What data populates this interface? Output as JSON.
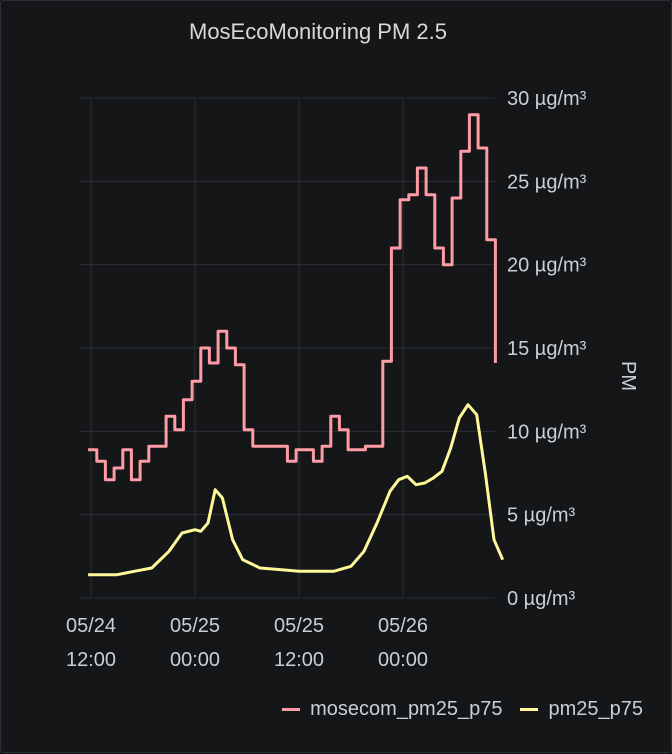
{
  "chart_data": {
    "type": "line",
    "title": "MosEcoMonitoring PM 2.5",
    "ylabel": "PM",
    "y_unit": "µg/m³",
    "ylim": [
      0,
      30
    ],
    "y_ticks": [
      0,
      5,
      10,
      15,
      20,
      25,
      30
    ],
    "y_tick_labels": [
      "0 µg/m³",
      "5 µg/m³",
      "10 µg/m³",
      "15 µg/m³",
      "20 µg/m³",
      "25 µg/m³",
      "30 µg/m³"
    ],
    "x_ticks": [
      {
        "t": "05/24 12:00",
        "line1": "05/24",
        "line2": "12:00"
      },
      {
        "t": "05/25 00:00",
        "line1": "05/25",
        "line2": "00:00"
      },
      {
        "t": "05/25 12:00",
        "line1": "05/25",
        "line2": "12:00"
      },
      {
        "t": "05/26 00:00",
        "line1": "05/26",
        "line2": "00:00"
      }
    ],
    "grid": true,
    "legend_position": "bottom-right",
    "series": [
      {
        "name": "mosecom_pm25_p75",
        "color": "#ff9ba5",
        "step": true,
        "points": [
          [
            "05/24 11:40",
            8.9
          ],
          [
            "05/24 12:40",
            8.2
          ],
          [
            "05/24 13:40",
            7.1
          ],
          [
            "05/24 14:40",
            7.8
          ],
          [
            "05/24 15:40",
            8.9
          ],
          [
            "05/24 16:40",
            7.1
          ],
          [
            "05/24 17:40",
            8.2
          ],
          [
            "05/24 18:40",
            9.1
          ],
          [
            "05/24 20:40",
            10.9
          ],
          [
            "05/24 21:40",
            10.1
          ],
          [
            "05/24 22:40",
            11.9
          ],
          [
            "05/24 23:40",
            13.0
          ],
          [
            "05/25 00:40",
            15.0
          ],
          [
            "05/25 01:40",
            14.1
          ],
          [
            "05/25 02:40",
            16.0
          ],
          [
            "05/25 03:40",
            15.0
          ],
          [
            "05/25 04:40",
            14.0
          ],
          [
            "05/25 05:40",
            10.1
          ],
          [
            "05/25 06:40",
            9.1
          ],
          [
            "05/25 10:40",
            8.2
          ],
          [
            "05/25 11:40",
            8.9
          ],
          [
            "05/25 13:40",
            8.2
          ],
          [
            "05/25 14:40",
            9.1
          ],
          [
            "05/25 15:40",
            10.9
          ],
          [
            "05/25 16:40",
            10.1
          ],
          [
            "05/25 17:40",
            8.9
          ],
          [
            "05/25 19:40",
            9.1
          ],
          [
            "05/25 21:40",
            14.2
          ],
          [
            "05/25 22:40",
            21.0
          ],
          [
            "05/25 23:40",
            23.9
          ],
          [
            "05/26 00:40",
            24.2
          ],
          [
            "05/26 01:40",
            25.8
          ],
          [
            "05/26 02:40",
            24.2
          ],
          [
            "05/26 03:40",
            21.0
          ],
          [
            "05/26 04:40",
            20.0
          ],
          [
            "05/26 05:40",
            24.0
          ],
          [
            "05/26 06:40",
            26.8
          ],
          [
            "05/26 07:40",
            29.0
          ],
          [
            "05/26 08:40",
            27.0
          ],
          [
            "05/26 09:40",
            21.5
          ],
          [
            "05/26 10:40",
            14.1
          ]
        ]
      },
      {
        "name": "pm25_p75",
        "color": "#fff899",
        "step": false,
        "points": [
          [
            "05/24 11:40",
            1.4
          ],
          [
            "05/24 13:00",
            1.4
          ],
          [
            "05/24 15:00",
            1.4
          ],
          [
            "05/24 17:00",
            1.6
          ],
          [
            "05/24 19:00",
            1.8
          ],
          [
            "05/24 21:00",
            2.8
          ],
          [
            "05/24 22:30",
            3.9
          ],
          [
            "05/25 00:00",
            4.1
          ],
          [
            "05/25 00:40",
            4.0
          ],
          [
            "05/25 01:30",
            4.5
          ],
          [
            "05/25 02:20",
            6.5
          ],
          [
            "05/25 03:10",
            6.0
          ],
          [
            "05/25 04:20",
            3.5
          ],
          [
            "05/25 05:30",
            2.3
          ],
          [
            "05/25 07:30",
            1.8
          ],
          [
            "05/25 10:00",
            1.7
          ],
          [
            "05/25 12:00",
            1.6
          ],
          [
            "05/25 14:00",
            1.6
          ],
          [
            "05/25 16:00",
            1.6
          ],
          [
            "05/25 18:00",
            1.9
          ],
          [
            "05/25 19:30",
            2.8
          ],
          [
            "05/25 21:00",
            4.5
          ],
          [
            "05/25 22:30",
            6.4
          ],
          [
            "05/25 23:30",
            7.1
          ],
          [
            "05/26 00:30",
            7.3
          ],
          [
            "05/26 01:30",
            6.8
          ],
          [
            "05/26 02:30",
            6.9
          ],
          [
            "05/26 03:30",
            7.2
          ],
          [
            "05/26 04:30",
            7.6
          ],
          [
            "05/26 05:30",
            9.0
          ],
          [
            "05/26 06:30",
            10.8
          ],
          [
            "05/26 07:30",
            11.6
          ],
          [
            "05/26 08:30",
            11.0
          ],
          [
            "05/26 09:30",
            7.5
          ],
          [
            "05/26 10:30",
            3.5
          ],
          [
            "05/26 11:30",
            2.3
          ]
        ]
      }
    ]
  }
}
